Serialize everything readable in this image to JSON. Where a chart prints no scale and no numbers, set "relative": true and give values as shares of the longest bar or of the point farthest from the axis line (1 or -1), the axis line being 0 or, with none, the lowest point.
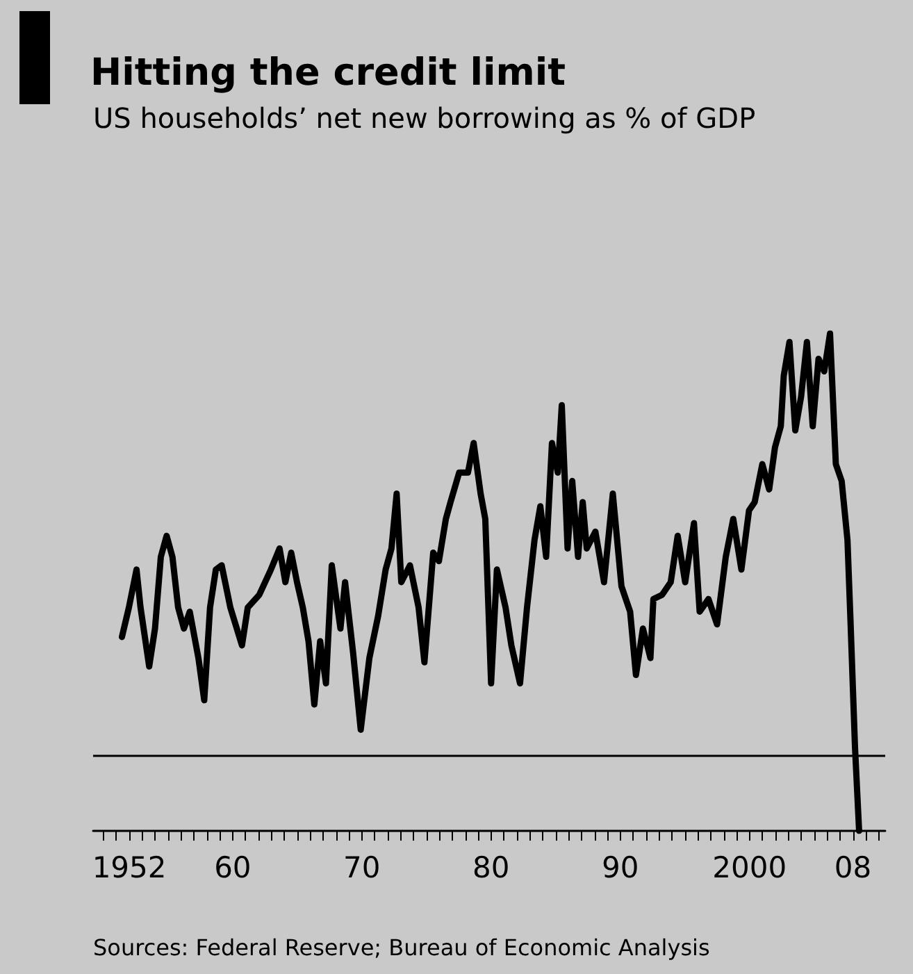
{
  "chart_data": {
    "type": "line",
    "title": "Hitting the credit limit",
    "subtitle": "US households’ net new borrowing as % of GDP",
    "annotations": [
      "Sources: Federal Reserve; Bureau of Economic Analysis"
    ],
    "relative": true,
    "marker": "none",
    "line_style": "solid",
    "grid": false,
    "ref_lines": [
      {
        "axis": "y",
        "value": 0,
        "color": "#000000"
      }
    ],
    "xlim": [
      1949.2,
      2010.5
    ],
    "xticks": [
      {
        "value": 1950,
        "label": null
      },
      {
        "value": 1951,
        "label": null
      },
      {
        "value": 1952,
        "label": "1952"
      },
      {
        "value": 1953,
        "label": null
      },
      {
        "value": 1954,
        "label": null
      },
      {
        "value": 1955,
        "label": null
      },
      {
        "value": 1956,
        "label": null
      },
      {
        "value": 1957,
        "label": null
      },
      {
        "value": 1958,
        "label": null
      },
      {
        "value": 1959,
        "label": null
      },
      {
        "value": 1960,
        "label": "60"
      },
      {
        "value": 1961,
        "label": null
      },
      {
        "value": 1962,
        "label": null
      },
      {
        "value": 1963,
        "label": null
      },
      {
        "value": 1964,
        "label": null
      },
      {
        "value": 1965,
        "label": null
      },
      {
        "value": 1966,
        "label": null
      },
      {
        "value": 1967,
        "label": null
      },
      {
        "value": 1968,
        "label": null
      },
      {
        "value": 1969,
        "label": null
      },
      {
        "value": 1970,
        "label": "70"
      },
      {
        "value": 1971,
        "label": null
      },
      {
        "value": 1972,
        "label": null
      },
      {
        "value": 1973,
        "label": null
      },
      {
        "value": 1974,
        "label": null
      },
      {
        "value": 1975,
        "label": null
      },
      {
        "value": 1976,
        "label": null
      },
      {
        "value": 1977,
        "label": null
      },
      {
        "value": 1978,
        "label": null
      },
      {
        "value": 1979,
        "label": null
      },
      {
        "value": 1980,
        "label": "80"
      },
      {
        "value": 1981,
        "label": null
      },
      {
        "value": 1982,
        "label": null
      },
      {
        "value": 1983,
        "label": null
      },
      {
        "value": 1984,
        "label": null
      },
      {
        "value": 1985,
        "label": null
      },
      {
        "value": 1986,
        "label": null
      },
      {
        "value": 1987,
        "label": null
      },
      {
        "value": 1988,
        "label": null
      },
      {
        "value": 1989,
        "label": null
      },
      {
        "value": 1990,
        "label": "90"
      },
      {
        "value": 1991,
        "label": null
      },
      {
        "value": 1992,
        "label": null
      },
      {
        "value": 1993,
        "label": null
      },
      {
        "value": 1994,
        "label": null
      },
      {
        "value": 1995,
        "label": null
      },
      {
        "value": 1996,
        "label": null
      },
      {
        "value": 1997,
        "label": null
      },
      {
        "value": 1998,
        "label": null
      },
      {
        "value": 1999,
        "label": null
      },
      {
        "value": 2000,
        "label": "2000"
      },
      {
        "value": 2001,
        "label": null
      },
      {
        "value": 2002,
        "label": null
      },
      {
        "value": 2003,
        "label": null
      },
      {
        "value": 2004,
        "label": null
      },
      {
        "value": 2005,
        "label": null
      },
      {
        "value": 2006,
        "label": null
      },
      {
        "value": 2007,
        "label": null
      },
      {
        "value": 2008,
        "label": "08"
      },
      {
        "value": 2009,
        "label": null
      },
      {
        "value": 2010,
        "label": null
      }
    ],
    "series": [
      {
        "color": "#000000",
        "x": [
          1951.43,
          1951.97,
          1952.56,
          1952.87,
          1953.54,
          1953.99,
          1954.44,
          1954.89,
          1955.34,
          1955.78,
          1956.23,
          1956.68,
          1957.35,
          1957.8,
          1958.25,
          1958.7,
          1959.15,
          1959.82,
          1960.72,
          1961.17,
          1962.06,
          1962.96,
          1963.63,
          1964.08,
          1964.53,
          1964.98,
          1965.43,
          1965.87,
          1966.32,
          1966.77,
          1967.22,
          1967.67,
          1968.34,
          1968.7,
          1969.33,
          1969.91,
          1970.58,
          1971.26,
          1971.84,
          1972.29,
          1972.69,
          1973.05,
          1973.72,
          1974.39,
          1974.84,
          1975.52,
          1975.96,
          1976.5,
          1976.86,
          1977.53,
          1978.21,
          1978.65,
          1979.19,
          1979.55,
          1980.0,
          1980.45,
          1981.12,
          1981.57,
          1982.24,
          1982.78,
          1983.36,
          1983.81,
          1984.26,
          1984.71,
          1985.16,
          1985.47,
          1985.92,
          1986.28,
          1986.73,
          1987.09,
          1987.4,
          1988.07,
          1988.74,
          1989.42,
          1990.09,
          1990.76,
          1991.21,
          1991.75,
          1992.33,
          1992.56,
          1993.23,
          1993.9,
          1994.44,
          1995.02,
          1995.7,
          1996.14,
          1996.82,
          1997.49,
          1998.16,
          1998.74,
          1999.37,
          1999.96,
          2000.4,
          2000.99,
          2001.52,
          2001.97,
          2002.42,
          2002.65,
          2003.09,
          2003.54,
          2003.99,
          2004.44,
          2004.89,
          2005.34,
          2005.78,
          2006.23,
          2006.68,
          2007.13,
          2007.58,
          2007.8,
          2008.16,
          2008.48
        ],
        "values": [
          0.28,
          0.35,
          0.44,
          0.35,
          0.21,
          0.3,
          0.47,
          0.52,
          0.47,
          0.35,
          0.3,
          0.34,
          0.23,
          0.13,
          0.35,
          0.44,
          0.45,
          0.35,
          0.26,
          0.35,
          0.38,
          0.44,
          0.49,
          0.41,
          0.48,
          0.41,
          0.35,
          0.27,
          0.12,
          0.27,
          0.17,
          0.45,
          0.3,
          0.41,
          0.24,
          0.06,
          0.23,
          0.33,
          0.44,
          0.49,
          0.62,
          0.41,
          0.45,
          0.35,
          0.22,
          0.48,
          0.46,
          0.56,
          0.6,
          0.67,
          0.67,
          0.74,
          0.62,
          0.56,
          0.17,
          0.44,
          0.35,
          0.26,
          0.17,
          0.35,
          0.51,
          0.59,
          0.47,
          0.74,
          0.67,
          0.83,
          0.49,
          0.65,
          0.47,
          0.6,
          0.49,
          0.53,
          0.41,
          0.62,
          0.4,
          0.34,
          0.19,
          0.3,
          0.23,
          0.37,
          0.38,
          0.41,
          0.52,
          0.41,
          0.55,
          0.34,
          0.37,
          0.31,
          0.47,
          0.56,
          0.44,
          0.58,
          0.6,
          0.69,
          0.63,
          0.73,
          0.78,
          0.9,
          0.98,
          0.77,
          0.85,
          0.98,
          0.78,
          0.94,
          0.91,
          1.0,
          0.69,
          0.65,
          0.51,
          0.33,
          0.02,
          -0.18
        ]
      }
    ]
  }
}
